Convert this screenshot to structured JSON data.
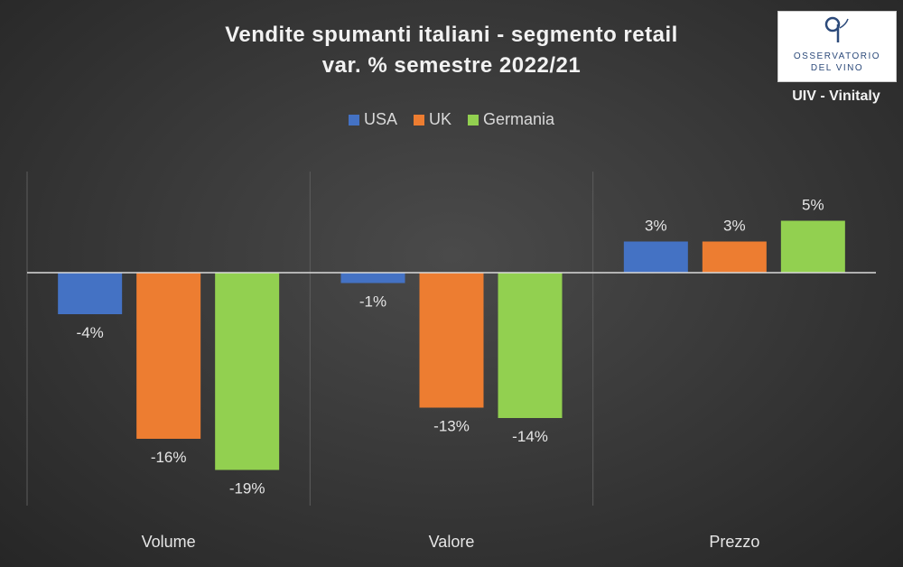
{
  "title_line1": "Vendite spumanti italiani - segmento retail",
  "title_line2": "var. % semestre 2022/21",
  "logo": {
    "line1": "OSSERVATORIO",
    "line2": "DEL VINO",
    "caption": "UIV - Vinitaly"
  },
  "legend": [
    {
      "name": "USA",
      "color": "#4472c4"
    },
    {
      "name": "UK",
      "color": "#ed7d31"
    },
    {
      "name": "Germania",
      "color": "#92d050"
    }
  ],
  "chart_data": {
    "type": "bar",
    "categories": [
      "Volume",
      "Valore",
      "Prezzo"
    ],
    "series": [
      {
        "name": "USA",
        "color": "#4472c4",
        "values": [
          -4,
          -1,
          3
        ],
        "labels": [
          "-4%",
          "-1%",
          "3%"
        ]
      },
      {
        "name": "UK",
        "color": "#ed7d31",
        "values": [
          -16,
          -13,
          3
        ],
        "labels": [
          "-16%",
          "-13%",
          "3%"
        ]
      },
      {
        "name": "Germania",
        "color": "#92d050",
        "values": [
          -19,
          -14,
          5
        ],
        "labels": [
          "-19%",
          "-14%",
          "5%"
        ]
      }
    ],
    "ylim": [
      -21,
      10
    ],
    "legend_position": "top",
    "grid": false
  }
}
